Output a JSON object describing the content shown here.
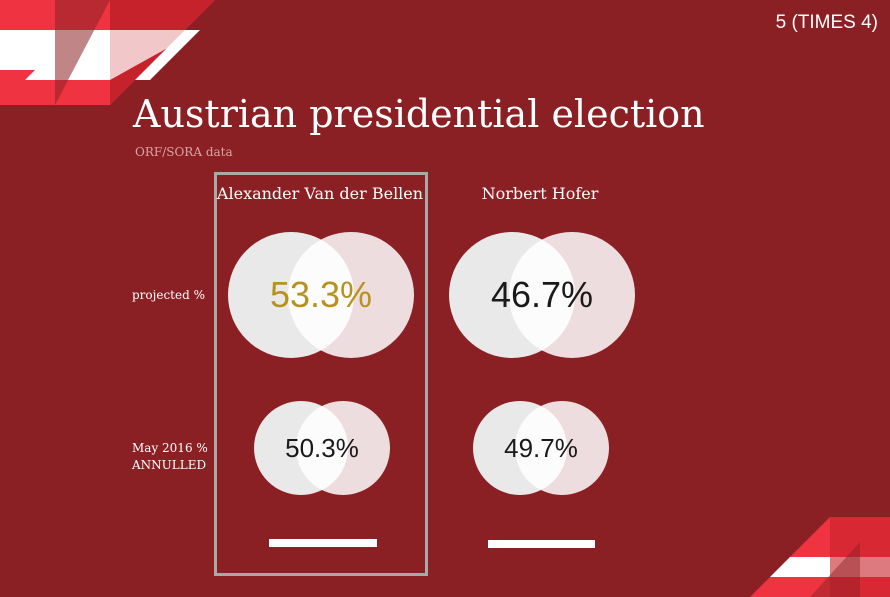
{
  "page_tag": "5 (TIMES 4)",
  "title": "Austrian presidential election",
  "subtitle": "ORF/SORA data",
  "rows": {
    "projected_label": "projected %",
    "may_label_line1": "May 2016 %",
    "may_label_line2": "ANNULLED"
  },
  "candidates": [
    {
      "name": "Alexander Van der Bellen",
      "projected": "53.3%",
      "may_2016": "50.3%",
      "highlighted": true
    },
    {
      "name": "Norbert Hofer",
      "projected": "46.7%",
      "may_2016": "49.7%",
      "highlighted": false
    }
  ],
  "colors": {
    "background": "#8b2024",
    "flag_red": "#ef3340",
    "flag_white": "#ffffff",
    "winner_value": "#b8921f",
    "circle_left": "#e9e9e9",
    "circle_right": "#ffffff",
    "box_border": "#a9a9a9"
  }
}
